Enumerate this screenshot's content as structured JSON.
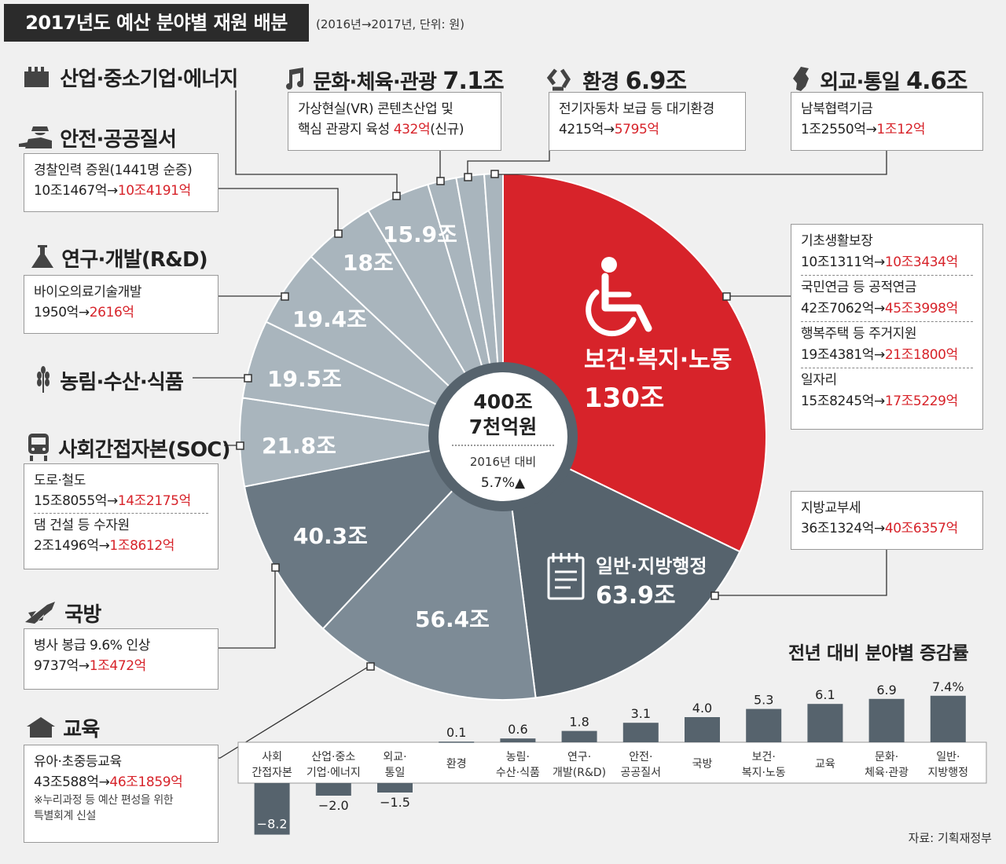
{
  "header": {
    "title": "2017년도 예산 분야별 재원 배분",
    "subtitle": "(2016년→2017년, 단위: 원)"
  },
  "center": {
    "total_line1": "400조",
    "total_line2": "7천억원",
    "compare": "2016년 대비",
    "growth": "5.7%▲"
  },
  "pie_labels": {
    "welfare_name": "보건·복지·노동",
    "welfare_value": "130조",
    "admin_name": "일반·지방행정",
    "admin_value": "63.9조",
    "v5": "56.4조",
    "v6": "40.3조",
    "v7": "21.8조",
    "v8": "19.5조",
    "v9": "19.4조",
    "v10": "18조",
    "v11": "15.9조"
  },
  "categories": {
    "industry": {
      "title": "산업·중소기업·에너지",
      "icon": "factory-icon"
    },
    "culture": {
      "title": "문화·체육·관광",
      "amount": "7.1조",
      "icon": "music-note-icon",
      "line1": "가상현실(VR) 콘텐츠산업 및",
      "line2a": "핵심 관광지 육성 ",
      "line2b": "432억",
      "line2c": "(신규)"
    },
    "env": {
      "title": "환경",
      "amount": "6.9조",
      "icon": "recycle-icon",
      "line1": "전기자동차 보급 등 대기환경",
      "from": "4215억",
      "arrow": "→",
      "to": "5795억"
    },
    "diplomacy": {
      "title": "외교·통일",
      "amount": "4.6조",
      "icon": "korea-map-icon",
      "line1": "남북협력기금",
      "from": "1조2550억",
      "arrow": "→",
      "to": "1조12억"
    },
    "safety": {
      "title": "안전·공공질서",
      "icon": "police-icon",
      "line1": "경찰인력 증원(1441명 순증)",
      "from": "10조1467억",
      "arrow": "→",
      "to": "10조4191억"
    },
    "rnd": {
      "title": "연구·개발(R&D)",
      "icon": "flask-icon",
      "line1": "바이오의료기술개발",
      "from": "1950억",
      "arrow": "→",
      "to": "2616억"
    },
    "agri": {
      "title": "농림·수산·식품",
      "icon": "wheat-icon"
    },
    "soc": {
      "title": "사회간접자본(SOC)",
      "icon": "train-icon",
      "a1": "도로·철도",
      "a_from": "15조8055억",
      "arrow": "→",
      "a_to": "14조2175억",
      "b1": "댐 건설 등 수자원",
      "b_from": "2조1496억",
      "b_to": "1조8612억"
    },
    "defense": {
      "title": "국방",
      "icon": "missile-icon",
      "line1": "병사 봉급 9.6% 인상",
      "from": "9737억",
      "arrow": "→",
      "to": "1조472억"
    },
    "education": {
      "title": "교육",
      "icon": "school-icon",
      "line1": "유아·초중등교육",
      "from": "43조588억",
      "arrow": "→",
      "to": "46조1859억",
      "note1": "※누리과정 등 예산 편성을 위한",
      "note2": "특별회계 신설"
    },
    "welfare": {
      "i1": "기초생활보장",
      "i1_from": "10조1311억",
      "i1_to": "10조3434억",
      "i2": "국민연금 등 공적연금",
      "i2_from": "42조7062억",
      "i2_to": "45조3998억",
      "i3": "행복주택 등 주거지원",
      "i3_from": "19조4381억",
      "i3_to": "21조1800억",
      "i4": "일자리",
      "i4_from": "15조8245억",
      "i4_to": "17조5229억",
      "arrow": "→"
    },
    "admin": {
      "line1": "지방교부세",
      "from": "36조1324억",
      "arrow": "→",
      "to": "40조6357억"
    }
  },
  "source": "자료: 기획재정부",
  "chart_data": [
    {
      "type": "pie",
      "title": "2017년도 예산 분야별 재원 배분",
      "unit": "조원",
      "slices": [
        {
          "label": "보건·복지·노동",
          "value": 130,
          "color": "#d7232a"
        },
        {
          "label": "일반·지방행정",
          "value": 63.9,
          "color": "#56636d"
        },
        {
          "label": "교육",
          "value": 56.4,
          "color": "#7d8b96"
        },
        {
          "label": "국방",
          "value": 40.3,
          "color": "#6a7883"
        },
        {
          "label": "사회간접자본(SOC)",
          "value": 21.8,
          "color": "#a9b5bd"
        },
        {
          "label": "농림·수산·식품",
          "value": 19.5,
          "color": "#a9b5bd"
        },
        {
          "label": "연구·개발(R&D)",
          "value": 19.4,
          "color": "#a9b5bd"
        },
        {
          "label": "안전·공공질서",
          "value": 18,
          "color": "#a9b5bd"
        },
        {
          "label": "산업·중소기업·에너지",
          "value": 15.9,
          "color": "#a9b5bd"
        },
        {
          "label": "문화·체육·관광",
          "value": 7.1,
          "color": "#a9b5bd"
        },
        {
          "label": "환경",
          "value": 6.9,
          "color": "#a9b5bd"
        },
        {
          "label": "외교·통일",
          "value": 4.6,
          "color": "#a9b5bd"
        }
      ]
    },
    {
      "type": "bar",
      "title": "전년 대비 분야별 증감률",
      "categories": [
        "사회\n간접자본",
        "산업·중소\n기업·에너지",
        "외교·\n통일",
        "환경",
        "농림·\n수산·식품",
        "연구·\n개발(R&D)",
        "안전·\n공공질서",
        "국방",
        "보건·\n복지·노동",
        "교육",
        "문화·\n체육·관광",
        "일반·\n지방행정"
      ],
      "values": [
        -8.2,
        -2.0,
        -1.5,
        0.1,
        0.6,
        1.8,
        3.1,
        4.0,
        5.3,
        6.1,
        6.9,
        7.4
      ],
      "value_labels": [
        "−8.2",
        "−2.0",
        "−1.5",
        "0.1",
        "0.6",
        "1.8",
        "3.1",
        "4.0",
        "5.3",
        "6.1",
        "6.9",
        "7.4%"
      ],
      "color": "#56636d"
    }
  ]
}
